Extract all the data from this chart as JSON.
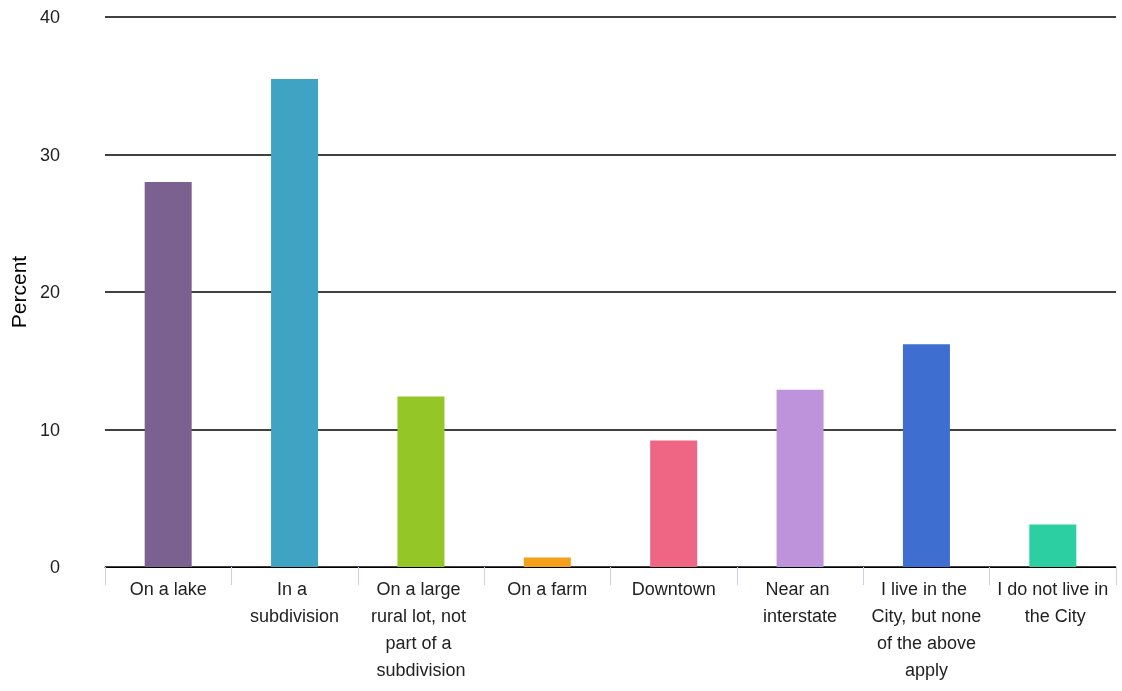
{
  "chart_data": {
    "type": "bar",
    "ylabel": "Percent",
    "categories": [
      "On a lake",
      "In a subdivision",
      "On a large rural lot, not part of a subdivision",
      "On a farm",
      "Downtown",
      "Near an interstate",
      "I live in the City, but none of the above apply",
      "I do not live in the City"
    ],
    "values": [
      28.0,
      35.5,
      12.4,
      0.7,
      9.2,
      12.9,
      16.2,
      3.1
    ],
    "colors": [
      "#7b6190",
      "#3fa3c4",
      "#95c627",
      "#f5a01a",
      "#ef6685",
      "#bf93dc",
      "#3e6ecf",
      "#2ccfa2"
    ],
    "ylim": [
      0,
      40
    ],
    "yticks": [
      0,
      10,
      20,
      30,
      40
    ],
    "grid": true
  }
}
